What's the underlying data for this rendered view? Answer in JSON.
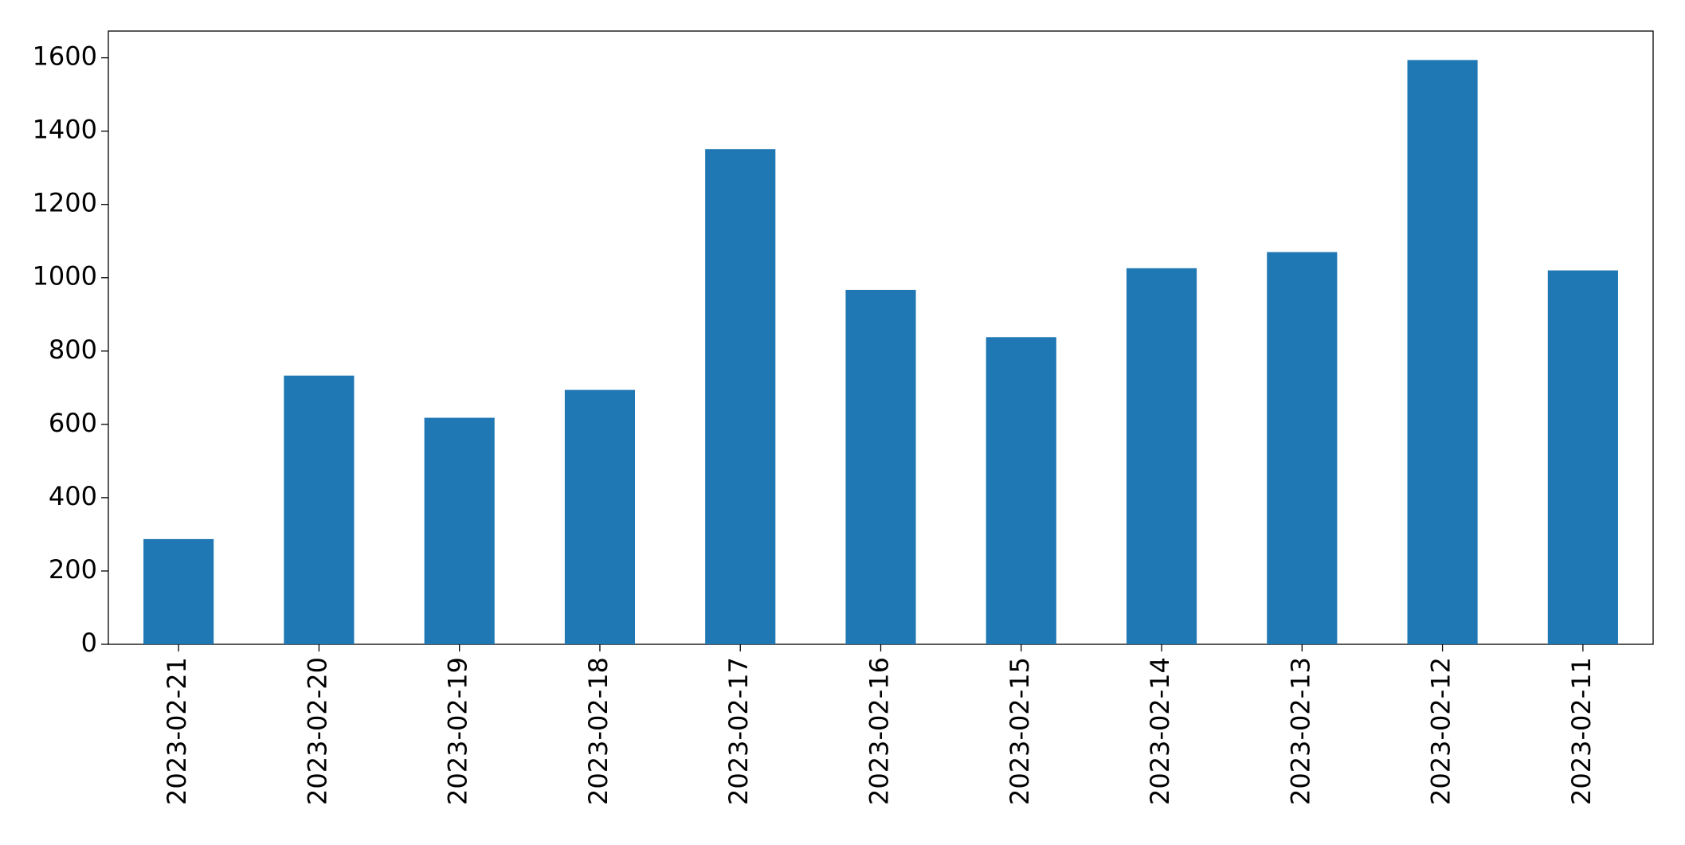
{
  "chart_data": {
    "type": "bar",
    "categories": [
      "2023-02-21",
      "2023-02-20",
      "2023-02-19",
      "2023-02-18",
      "2023-02-17",
      "2023-02-16",
      "2023-02-15",
      "2023-02-14",
      "2023-02-13",
      "2023-02-12",
      "2023-02-11"
    ],
    "values": [
      287,
      733,
      618,
      694,
      1351,
      967,
      838,
      1026,
      1070,
      1594,
      1020
    ],
    "color": "#1f77b4",
    "ylim": [
      0,
      1673
    ],
    "yticks": [
      0,
      200,
      400,
      600,
      800,
      1000,
      1200,
      1400,
      1600
    ],
    "grid": false
  }
}
